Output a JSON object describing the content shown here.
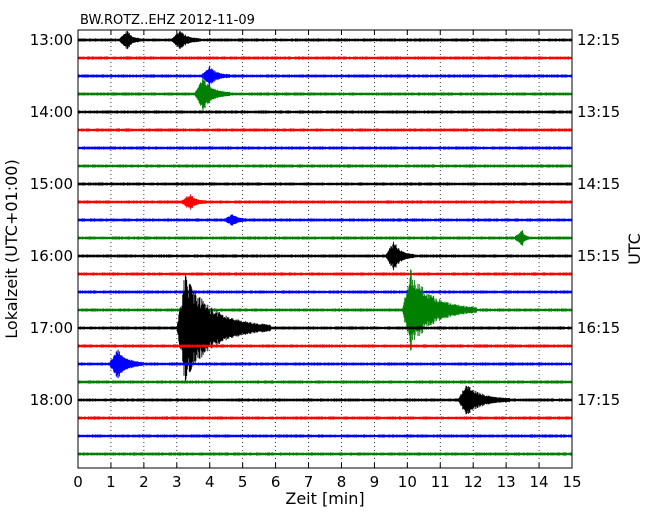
{
  "chart_data": {
    "type": "line",
    "chart_kind": "helicorder",
    "title": "BW.ROTZ..EHZ 2012-11-09",
    "xlabel": "Zeit  [min]",
    "ylabel_left": "Lokalzeit (UTC+01:00)",
    "ylabel_right": "UTC",
    "xlim": [
      0,
      15
    ],
    "x_ticks": [
      "0",
      "1",
      "2",
      "3",
      "4",
      "5",
      "6",
      "7",
      "8",
      "9",
      "10",
      "11",
      "12",
      "13",
      "14",
      "15"
    ],
    "grid": "vertical dotted",
    "left_ticks": [
      "13:00",
      "14:00",
      "15:00",
      "16:00",
      "17:00",
      "18:00"
    ],
    "right_ticks": [
      "12:15",
      "13:15",
      "14:15",
      "15:15",
      "16:15",
      "17:15"
    ],
    "trace_colors": [
      "#000000",
      "#ff0000",
      "#0000ff",
      "#008000"
    ],
    "trace_count": 24,
    "events": [
      {
        "trace": 0,
        "x": 1.5,
        "amp": 0.5,
        "dur": 0.4
      },
      {
        "trace": 0,
        "x": 3.1,
        "amp": 0.5,
        "dur": 0.6
      },
      {
        "trace": 2,
        "x": 4.0,
        "amp": 0.5,
        "dur": 0.6
      },
      {
        "trace": 3,
        "x": 3.8,
        "amp": 0.9,
        "dur": 0.8
      },
      {
        "trace": 9,
        "x": 3.4,
        "amp": 0.4,
        "dur": 0.5
      },
      {
        "trace": 10,
        "x": 4.7,
        "amp": 0.3,
        "dur": 0.4
      },
      {
        "trace": 11,
        "x": 13.5,
        "amp": 0.4,
        "dur": 0.2
      },
      {
        "trace": 12,
        "x": 9.6,
        "amp": 0.8,
        "dur": 0.6
      },
      {
        "trace": 15,
        "x": 10.1,
        "amp": 2.2,
        "dur": 2.0
      },
      {
        "trace": 16,
        "x": 3.25,
        "amp": 3.0,
        "dur": 2.6
      },
      {
        "trace": 18,
        "x": 1.2,
        "amp": 0.8,
        "dur": 0.8
      },
      {
        "trace": 20,
        "x": 11.8,
        "amp": 0.9,
        "dur": 1.3
      }
    ]
  }
}
